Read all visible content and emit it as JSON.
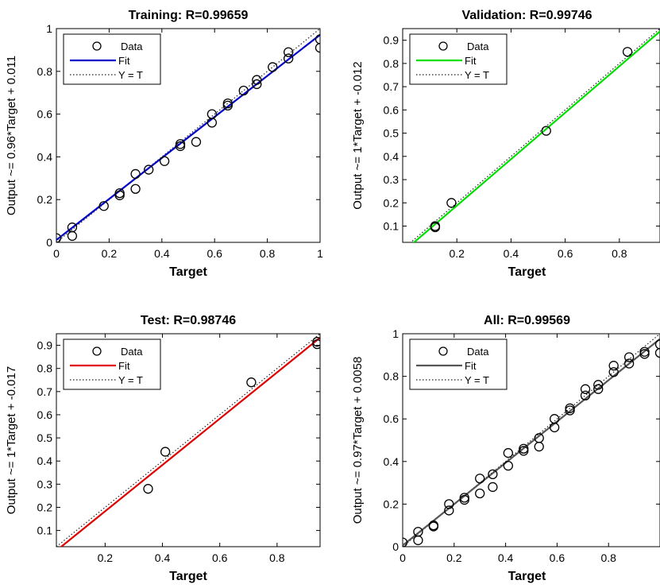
{
  "chart_data": [
    {
      "type": "scatter",
      "title": "Training: R=0.99659",
      "xlabel": "Target",
      "ylabel": "Output ~= 0.96*Target + 0.011",
      "xlim": [
        0,
        1
      ],
      "ylim": [
        0,
        1
      ],
      "xticks": [
        "0",
        "0.2",
        "0.4",
        "0.6",
        "0.8",
        "1"
      ],
      "xtick_values": [
        0,
        0.2,
        0.4,
        0.6,
        0.8,
        1
      ],
      "yticks": [
        "0",
        "0.2",
        "0.4",
        "0.6",
        "0.8",
        "1"
      ],
      "ytick_values": [
        0,
        0.2,
        0.4,
        0.6,
        0.8,
        1
      ],
      "fit_color": "#0000c8",
      "fit": {
        "slope": 0.96,
        "intercept": 0.011
      },
      "legend": [
        "Data",
        "Fit",
        "Y = T"
      ],
      "legend_position": "top-left",
      "grid": false,
      "data": {
        "x": [
          0.0,
          0.06,
          0.06,
          0.18,
          0.24,
          0.24,
          0.3,
          0.3,
          0.35,
          0.41,
          0.47,
          0.47,
          0.53,
          0.59,
          0.59,
          0.65,
          0.65,
          0.71,
          0.76,
          0.76,
          0.82,
          0.88,
          0.88,
          1.0,
          1.0
        ],
        "y": [
          0.02,
          0.07,
          0.03,
          0.17,
          0.22,
          0.23,
          0.25,
          0.32,
          0.34,
          0.38,
          0.45,
          0.46,
          0.47,
          0.56,
          0.6,
          0.64,
          0.65,
          0.71,
          0.74,
          0.76,
          0.82,
          0.86,
          0.89,
          0.91,
          0.95
        ]
      }
    },
    {
      "type": "scatter",
      "title": "Validation: R=0.99746",
      "xlabel": "Target",
      "ylabel": "Output ~= 1*Target + -0.012",
      "xlim": [
        0.0,
        0.95
      ],
      "ylim": [
        0.03,
        0.95
      ],
      "xticks": [
        "0.2",
        "0.4",
        "0.6",
        "0.8"
      ],
      "xtick_values": [
        0.2,
        0.4,
        0.6,
        0.8
      ],
      "yticks": [
        "0.1",
        "0.2",
        "0.3",
        "0.4",
        "0.5",
        "0.6",
        "0.7",
        "0.8",
        "0.9"
      ],
      "ytick_values": [
        0.1,
        0.2,
        0.3,
        0.4,
        0.5,
        0.6,
        0.7,
        0.8,
        0.9
      ],
      "fit_color": "#00e000",
      "fit": {
        "slope": 1.0,
        "intercept": -0.012
      },
      "legend": [
        "Data",
        "Fit",
        "Y = T"
      ],
      "legend_position": "top-left",
      "grid": false,
      "data": {
        "x": [
          0.12,
          0.12,
          0.18,
          0.53,
          0.83
        ],
        "y": [
          0.1,
          0.095,
          0.2,
          0.51,
          0.85
        ]
      }
    },
    {
      "type": "scatter",
      "title": "Test: R=0.98746",
      "xlabel": "Target",
      "ylabel": "Output ~= 1*Target + -0.017",
      "xlim": [
        0.03,
        0.95
      ],
      "ylim": [
        0.03,
        0.95
      ],
      "xticks": [
        "0.2",
        "0.4",
        "0.6",
        "0.8"
      ],
      "xtick_values": [
        0.2,
        0.4,
        0.6,
        0.8
      ],
      "yticks": [
        "0.1",
        "0.2",
        "0.3",
        "0.4",
        "0.5",
        "0.6",
        "0.7",
        "0.8",
        "0.9"
      ],
      "ytick_values": [
        0.1,
        0.2,
        0.3,
        0.4,
        0.5,
        0.6,
        0.7,
        0.8,
        0.9
      ],
      "fit_color": "#e00000",
      "fit": {
        "slope": 1.0,
        "intercept": -0.017
      },
      "legend": [
        "Data",
        "Fit",
        "Y = T"
      ],
      "legend_position": "top-left",
      "grid": false,
      "data": {
        "x": [
          0.35,
          0.41,
          0.71,
          0.94,
          0.94
        ],
        "y": [
          0.28,
          0.44,
          0.74,
          0.905,
          0.915
        ]
      }
    },
    {
      "type": "scatter",
      "title": "All: R=0.99569",
      "xlabel": "Target",
      "ylabel": "Output ~= 0.97*Target + 0.0058",
      "xlim": [
        0,
        1
      ],
      "ylim": [
        0,
        1
      ],
      "xticks": [
        "0",
        "0.2",
        "0.4",
        "0.6",
        "0.8"
      ],
      "xtick_values": [
        0,
        0.2,
        0.4,
        0.6,
        0.8
      ],
      "yticks": [
        "0",
        "0.2",
        "0.4",
        "0.6",
        "0.8",
        "1"
      ],
      "ytick_values": [
        0,
        0.2,
        0.4,
        0.6,
        0.8,
        1
      ],
      "fit_color": "#555555",
      "fit": {
        "slope": 0.97,
        "intercept": 0.0058
      },
      "legend": [
        "Data",
        "Fit",
        "Y = T"
      ],
      "legend_position": "top-left",
      "grid": false,
      "data": {
        "x": [
          0.0,
          0.06,
          0.06,
          0.12,
          0.12,
          0.18,
          0.18,
          0.24,
          0.24,
          0.3,
          0.3,
          0.35,
          0.35,
          0.41,
          0.41,
          0.47,
          0.47,
          0.53,
          0.53,
          0.59,
          0.59,
          0.65,
          0.65,
          0.71,
          0.71,
          0.76,
          0.76,
          0.82,
          0.82,
          0.88,
          0.88,
          0.94,
          0.94,
          1.0,
          1.0
        ],
        "y": [
          0.02,
          0.07,
          0.03,
          0.1,
          0.095,
          0.2,
          0.17,
          0.22,
          0.23,
          0.25,
          0.32,
          0.28,
          0.34,
          0.38,
          0.44,
          0.45,
          0.46,
          0.47,
          0.51,
          0.56,
          0.6,
          0.64,
          0.65,
          0.71,
          0.74,
          0.74,
          0.76,
          0.82,
          0.85,
          0.86,
          0.89,
          0.905,
          0.915,
          0.91,
          0.95
        ]
      }
    }
  ]
}
